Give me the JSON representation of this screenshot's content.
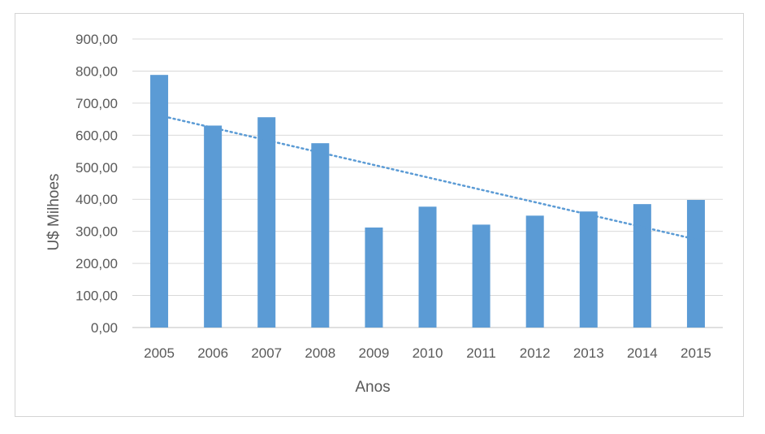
{
  "chart_data": {
    "type": "bar",
    "title": "",
    "xlabel": "Anos",
    "ylabel": "U$ Milhoes",
    "categories": [
      "2005",
      "2006",
      "2007",
      "2008",
      "2009",
      "2010",
      "2011",
      "2012",
      "2013",
      "2014",
      "2015"
    ],
    "series": [
      {
        "values": [
          788,
          630,
          656,
          575,
          312,
          377,
          321,
          349,
          362,
          385,
          398
        ]
      }
    ],
    "trendline": {
      "type": "linear",
      "style": "dotted"
    },
    "ylim": [
      0,
      900
    ],
    "yticks": [
      "0,00",
      "100,00",
      "200,00",
      "300,00",
      "400,00",
      "500,00",
      "600,00",
      "700,00",
      "800,00",
      "900,00"
    ],
    "grid": true,
    "legend": "none",
    "colors": {
      "bar": "#5b9bd5",
      "trendline": "#5b9bd5",
      "grid": "#d9d9d9",
      "text": "#595959"
    }
  }
}
